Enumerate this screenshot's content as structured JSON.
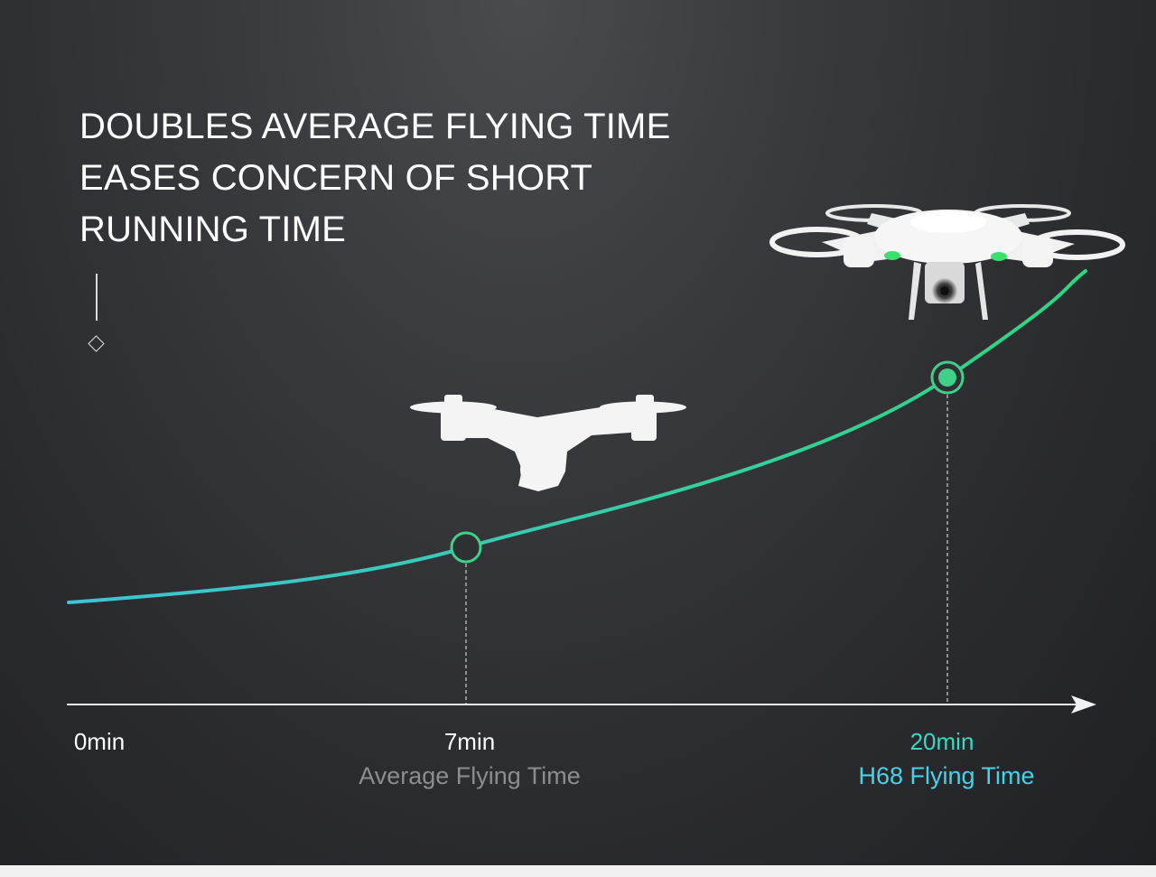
{
  "headline": {
    "line1": "DOUBLES AVERAGE FLYING TIME",
    "line2": "EASES CONCERN OF SHORT",
    "line3": "RUNNING TIME"
  },
  "chart_data": {
    "type": "line",
    "x_unit": "min",
    "points": [
      {
        "x": 0,
        "label": "0min",
        "caption": ""
      },
      {
        "x": 7,
        "label": "7min",
        "caption": "Average Flying Time"
      },
      {
        "x": 20,
        "label": "20min",
        "caption": "H68 Flying Time"
      }
    ],
    "markers": [
      7,
      20
    ],
    "grid": false,
    "legend": "none"
  },
  "labels": {
    "start": "0min",
    "average_value": "7min",
    "average_caption": "Average Flying Time",
    "h68_value": "20min",
    "h68_caption": "H68 Flying Time"
  },
  "colors": {
    "curve_start": "#3fc3d6",
    "curve_end": "#2fd57e",
    "marker_ring": "#3fd18a",
    "h68_value": "#3fd6c4",
    "h68_caption": "#48d2e8",
    "average_caption": "#8c8d90",
    "axis": "#e8e8e8"
  },
  "images": {
    "small_drone": "drone-silhouette",
    "h68_drone": "drone-with-camera"
  }
}
